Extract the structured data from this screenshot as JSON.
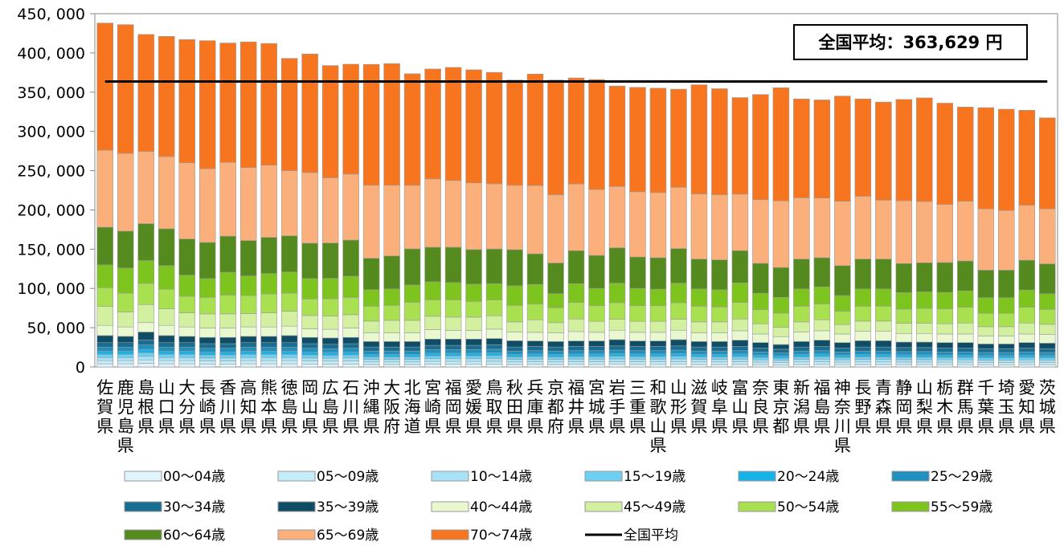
{
  "chart_data": {
    "type": "bar",
    "stacked": true,
    "ylim": [
      0,
      450000
    ],
    "yticks": [
      0,
      50000,
      100000,
      150000,
      200000,
      250000,
      300000,
      350000,
      400000,
      450000
    ],
    "ytick_labels": [
      "0",
      "50, 000",
      "100, 000",
      "150, 000",
      "200, 000",
      "250, 000",
      "300, 000",
      "350, 000",
      "400, 000",
      "450, 000"
    ],
    "grid": false,
    "legend_position": "bottom",
    "categories": [
      "佐賀県",
      "鹿児島県",
      "島根県",
      "山口県",
      "大分県",
      "長崎県",
      "香川県",
      "高知県",
      "熊本県",
      "徳島県",
      "岡山県",
      "広島県",
      "石川県",
      "沖縄県",
      "大阪府",
      "北海道",
      "宮崎県",
      "福岡県",
      "愛媛県",
      "鳥取県",
      "秋田県",
      "兵庫県",
      "京都府",
      "福井県",
      "宮城県",
      "岩手県",
      "三重県",
      "和歌山県",
      "山形県",
      "滋賀県",
      "岐阜県",
      "富山県",
      "奈良県",
      "東京都",
      "新潟県",
      "福島県",
      "神奈川県",
      "長野県",
      "青森県",
      "静岡県",
      "山梨県",
      "栃木県",
      "群馬県",
      "千葉県",
      "埼玉県",
      "愛知県",
      "茨城県"
    ],
    "series": [
      {
        "name": "00～04歳",
        "color": "#dff4fb",
        "values": [
          4000,
          4000,
          4500,
          4000,
          4000,
          3800,
          3800,
          4000,
          4000,
          4000,
          3800,
          3700,
          3800,
          3200,
          3200,
          3200,
          3500,
          3500,
          3500,
          3600,
          3200,
          3300,
          3200,
          3300,
          3300,
          3400,
          3300,
          3300,
          3400,
          3200,
          3200,
          3300,
          3000,
          2800,
          3200,
          3300,
          3000,
          3200,
          3200,
          3100,
          3100,
          3000,
          3000,
          2900,
          2900,
          3000,
          2900
        ]
      },
      {
        "name": "05～09歳",
        "color": "#c5ecf9",
        "values": [
          4000,
          4000,
          4500,
          4000,
          4000,
          3800,
          3800,
          4000,
          4000,
          4000,
          3800,
          3700,
          3800,
          3200,
          3200,
          3200,
          3500,
          3500,
          3500,
          3600,
          3200,
          3300,
          3200,
          3300,
          3300,
          3400,
          3300,
          3300,
          3400,
          3200,
          3200,
          3300,
          3000,
          2800,
          3200,
          3300,
          3000,
          3200,
          3200,
          3100,
          3100,
          3000,
          3000,
          2900,
          2900,
          3000,
          2900
        ]
      },
      {
        "name": "10～14歳",
        "color": "#a7e2f7",
        "values": [
          4000,
          4000,
          4500,
          4000,
          4000,
          3800,
          3800,
          4000,
          4000,
          4000,
          3800,
          3700,
          3800,
          3200,
          3200,
          3200,
          3500,
          3500,
          3500,
          3600,
          3200,
          3300,
          3200,
          3300,
          3300,
          3400,
          3300,
          3300,
          3400,
          3200,
          3200,
          3300,
          3000,
          2800,
          3200,
          3300,
          3000,
          3200,
          3200,
          3100,
          3100,
          3000,
          3000,
          2900,
          2900,
          3000,
          2900
        ]
      },
      {
        "name": "15～19歳",
        "color": "#6dd0f3",
        "values": [
          4000,
          4000,
          4500,
          4000,
          4000,
          3800,
          3800,
          4000,
          4000,
          4000,
          3800,
          3700,
          3800,
          3200,
          3200,
          3200,
          3500,
          3500,
          3500,
          3600,
          3200,
          3300,
          3200,
          3300,
          3300,
          3400,
          3300,
          3300,
          3400,
          3200,
          3200,
          3300,
          3000,
          2800,
          3200,
          3300,
          3000,
          3200,
          3200,
          3100,
          3100,
          3000,
          3000,
          2900,
          2900,
          3000,
          2900
        ]
      },
      {
        "name": "20～24歳",
        "color": "#17b2e8",
        "values": [
          4000,
          4000,
          4500,
          4000,
          4000,
          3800,
          3800,
          4000,
          4000,
          4000,
          3800,
          3700,
          3800,
          3200,
          3200,
          3200,
          3500,
          3500,
          3500,
          3600,
          3200,
          3300,
          3200,
          3300,
          3300,
          3400,
          3300,
          3300,
          3400,
          3200,
          3200,
          3300,
          3000,
          2800,
          3200,
          3300,
          3000,
          3200,
          3200,
          3100,
          3100,
          3000,
          3000,
          2900,
          2900,
          3000,
          2900
        ]
      },
      {
        "name": "25～29歳",
        "color": "#1f8fbd",
        "values": [
          5000,
          5000,
          5500,
          5000,
          5000,
          4800,
          4800,
          5000,
          5000,
          5000,
          4800,
          4700,
          4800,
          4200,
          4200,
          4200,
          4500,
          4500,
          4500,
          4600,
          4200,
          4300,
          4200,
          4300,
          4300,
          4400,
          4300,
          4300,
          4400,
          4200,
          4200,
          4300,
          4000,
          3800,
          4200,
          4300,
          4000,
          4200,
          4200,
          4100,
          4100,
          4000,
          4000,
          3900,
          3900,
          4000,
          3900
        ]
      },
      {
        "name": "30～34歳",
        "color": "#176e91",
        "values": [
          6000,
          6000,
          6500,
          6000,
          6000,
          5800,
          5800,
          6000,
          6000,
          6000,
          5800,
          5700,
          5800,
          5200,
          5200,
          5200,
          5500,
          5500,
          5500,
          5600,
          5200,
          5300,
          5200,
          5300,
          5300,
          5400,
          5300,
          5300,
          5400,
          5200,
          5200,
          5300,
          5000,
          4800,
          5200,
          5300,
          5000,
          5200,
          5200,
          5100,
          5100,
          5000,
          5000,
          4900,
          4900,
          5000,
          4900
        ]
      },
      {
        "name": "35～39歳",
        "color": "#0f4d66",
        "values": [
          9000,
          8000,
          10000,
          9000,
          8000,
          8000,
          8000,
          8000,
          8000,
          9000,
          8000,
          8000,
          8000,
          7000,
          7000,
          7000,
          8000,
          8000,
          8000,
          8000,
          8000,
          7000,
          7000,
          7000,
          7000,
          8000,
          7000,
          7000,
          8000,
          7000,
          7000,
          8000,
          7000,
          6000,
          7000,
          8000,
          7000,
          8000,
          8000,
          7000,
          7000,
          7000,
          7000,
          6000,
          6000,
          7000,
          7000
        ]
      },
      {
        "name": "40～44歳",
        "color": "#eaf8cf",
        "values": [
          13000,
          12000,
          12000,
          13000,
          12000,
          12000,
          12000,
          12000,
          12000,
          12000,
          11000,
          11000,
          12000,
          11000,
          11000,
          11000,
          12000,
          11000,
          11000,
          12000,
          11000,
          11000,
          11000,
          12000,
          11000,
          12000,
          11000,
          11000,
          12000,
          11000,
          11000,
          12000,
          11000,
          10000,
          12000,
          12000,
          11000,
          12000,
          12000,
          11000,
          11000,
          11000,
          11000,
          10000,
          10000,
          11000,
          11000
        ]
      },
      {
        "name": "45～49歳",
        "color": "#d3f0a1",
        "values": [
          24000,
          19000,
          23000,
          21000,
          18000,
          18000,
          18000,
          17000,
          18000,
          19000,
          17000,
          17000,
          17000,
          15000,
          16000,
          16000,
          17000,
          17000,
          17000,
          17000,
          13000,
          16000,
          13000,
          16000,
          14000,
          14000,
          14000,
          14000,
          14000,
          14000,
          14000,
          15000,
          13000,
          12000,
          13000,
          14000,
          12000,
          13000,
          13000,
          13000,
          13000,
          13000,
          14000,
          12000,
          12000,
          14000,
          13000
        ]
      },
      {
        "name": "50～54歳",
        "color": "#a8e050",
        "values": [
          24000,
          24000,
          27000,
          25000,
          21000,
          21000,
          24000,
          23000,
          24000,
          23000,
          21000,
          22000,
          22000,
          19000,
          19000,
          23000,
          21000,
          22000,
          20000,
          20000,
          21000,
          20000,
          19000,
          21000,
          20000,
          21000,
          20000,
          20000,
          21000,
          20000,
          19000,
          21000,
          18000,
          18000,
          20000,
          20000,
          17000,
          19000,
          19000,
          18000,
          19000,
          19000,
          20000,
          17000,
          17000,
          20000,
          19000
        ]
      },
      {
        "name": "55～59歳",
        "color": "#7ec41e",
        "values": [
          29000,
          32000,
          29000,
          30000,
          27000,
          24000,
          29000,
          25000,
          26000,
          27000,
          26000,
          26000,
          27000,
          21000,
          21000,
          22000,
          23000,
          22000,
          22000,
          21000,
          25000,
          25000,
          18000,
          24000,
          22000,
          25000,
          22000,
          21000,
          25000,
          22000,
          22000,
          25000,
          21000,
          20000,
          22000,
          22000,
          20000,
          22000,
          22000,
          21000,
          21000,
          21000,
          21000,
          20000,
          20000,
          22000,
          20000
        ]
      },
      {
        "name": "60～64歳",
        "color": "#548a1e",
        "values": [
          48000,
          47000,
          47000,
          47000,
          46000,
          46000,
          46000,
          45000,
          46000,
          46000,
          45000,
          45000,
          46000,
          40000,
          42000,
          46000,
          44000,
          45000,
          44000,
          44000,
          46000,
          39000,
          39000,
          42000,
          42000,
          45000,
          40000,
          40000,
          44000,
          38000,
          38000,
          41000,
          38000,
          38000,
          38000,
          37000,
          38000,
          38000,
          38000,
          37000,
          37000,
          38000,
          38000,
          35000,
          35000,
          38000,
          38000
        ]
      },
      {
        "name": "65～69歳",
        "color": "#fbb07c",
        "values": [
          98000,
          99000,
          92000,
          92000,
          97000,
          94000,
          94000,
          93000,
          92000,
          83000,
          90000,
          83000,
          84000,
          93000,
          90000,
          81000,
          87000,
          85000,
          85000,
          83000,
          82000,
          87000,
          87000,
          85000,
          84000,
          78000,
          83000,
          83000,
          78000,
          83000,
          83000,
          72000,
          81000,
          85000,
          78000,
          76000,
          82000,
          80000,
          75000,
          80000,
          78000,
          74000,
          76000,
          78000,
          76000,
          70000,
          70000
        ]
      },
      {
        "name": "70～74歳",
        "color": "#f7751f",
        "values": [
          162000,
          164000,
          149000,
          153000,
          157000,
          163000,
          152000,
          160000,
          155000,
          143000,
          151000,
          143000,
          140000,
          154000,
          155000,
          142000,
          140000,
          144000,
          144000,
          142000,
          134000,
          142000,
          146000,
          135000,
          140000,
          128000,
          133000,
          133000,
          125000,
          139000,
          135000,
          123000,
          134000,
          144000,
          126000,
          125000,
          134000,
          124000,
          125000,
          129000,
          132000,
          129000,
          120000,
          129000,
          129000,
          121000,
          116000
        ]
      }
    ],
    "average": {
      "name": "全国平均",
      "value": 363629
    },
    "annotation": "全国平均：363,629 円"
  }
}
